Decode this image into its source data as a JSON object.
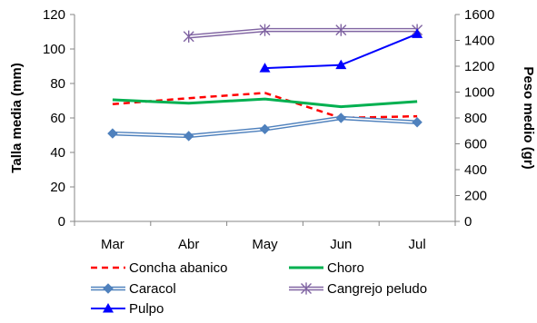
{
  "chart_data": {
    "type": "line",
    "categories": [
      "Mar",
      "Abr",
      "May",
      "Jun",
      "Jul"
    ],
    "left_axis": {
      "label": "Talla media (mm)",
      "ylim": [
        0,
        120
      ],
      "ticks": [
        "0",
        "20",
        "40",
        "60",
        "80",
        "100",
        "120"
      ]
    },
    "right_axis": {
      "label": "Peso medio (gr)",
      "ylim": [
        0,
        1600
      ],
      "ticks": [
        "0",
        "200",
        "400",
        "600",
        "800",
        "1000",
        "1200",
        "1400",
        "1600"
      ]
    },
    "grid": false,
    "legend_position": "bottom",
    "series": [
      {
        "name": "Concha abanico",
        "axis": "left",
        "color": "#ff0000",
        "style": "dashed",
        "marker": "none",
        "values": [
          68,
          71.5,
          74.5,
          60,
          61
        ]
      },
      {
        "name": "Choro",
        "axis": "left",
        "color": "#00b050",
        "style": "solid",
        "marker": "none",
        "values": [
          70.5,
          68.5,
          71,
          66.5,
          69.5
        ]
      },
      {
        "name": "Caracol",
        "axis": "left",
        "color": "#4f81bd",
        "style": "double",
        "marker": "diamond",
        "values": [
          51,
          49.5,
          53.5,
          60,
          57.5
        ]
      },
      {
        "name": "Cangrejo peludo",
        "axis": "right",
        "color": "#8064a2",
        "style": "double",
        "marker": "star",
        "values": [
          null,
          1430,
          1480,
          1480,
          1480
        ]
      },
      {
        "name": "Pulpo",
        "axis": "right",
        "color": "#0000ff",
        "style": "solid",
        "marker": "triangle",
        "values": [
          null,
          null,
          1185,
          1210,
          1450
        ]
      }
    ]
  }
}
